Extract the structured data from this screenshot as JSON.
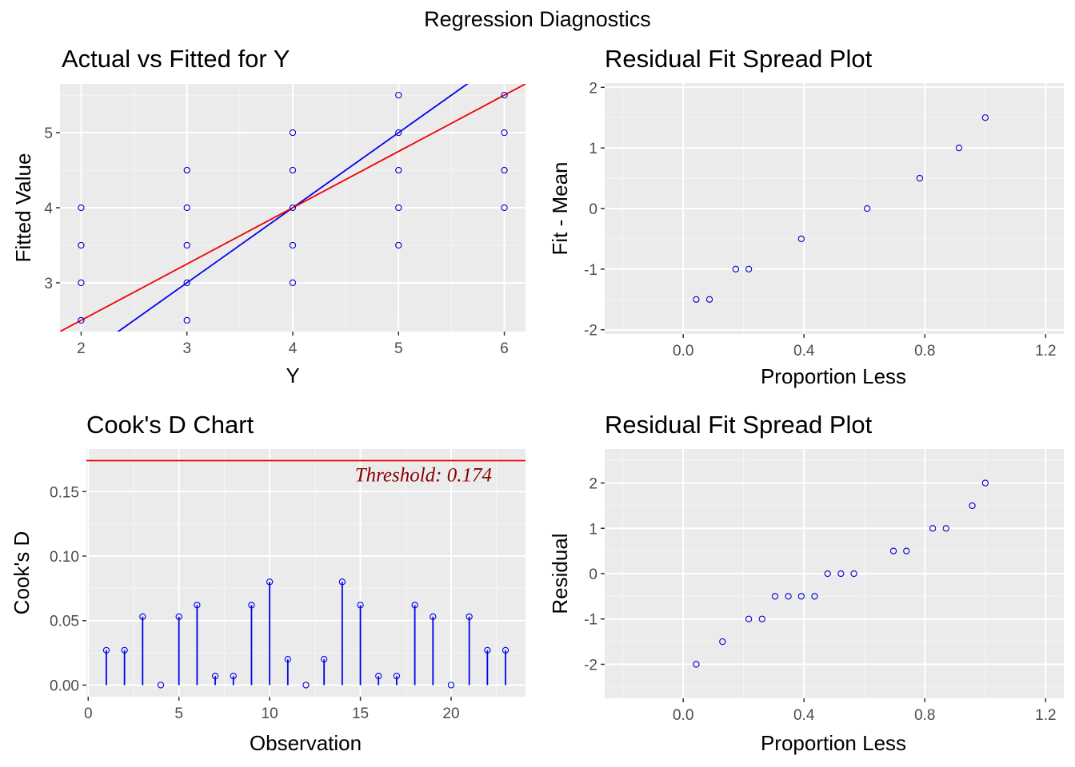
{
  "figure": {
    "title": "Regression Diagnostics"
  },
  "chart_data": [
    {
      "id": "actual-vs-fitted",
      "type": "scatter",
      "title": "Actual vs Fitted for Y",
      "xlabel": "Y",
      "ylabel": "Fitted Value",
      "xlim": [
        1.8,
        6.2
      ],
      "ylim": [
        2.35,
        5.65
      ],
      "xticks": [
        2,
        3,
        4,
        5,
        6
      ],
      "yticks": [
        3,
        4,
        5
      ],
      "grid": true,
      "points": [
        [
          2,
          2.5
        ],
        [
          2,
          3
        ],
        [
          2,
          3.5
        ],
        [
          2,
          4
        ],
        [
          3,
          2.5
        ],
        [
          3,
          3
        ],
        [
          3,
          3.5
        ],
        [
          3,
          4
        ],
        [
          3,
          4.5
        ],
        [
          4,
          3
        ],
        [
          4,
          3.5
        ],
        [
          4,
          4
        ],
        [
          4,
          4.5
        ],
        [
          4,
          5
        ],
        [
          5,
          3.5
        ],
        [
          5,
          4
        ],
        [
          5,
          4.5
        ],
        [
          5,
          5
        ],
        [
          5,
          5.5
        ],
        [
          6,
          4
        ],
        [
          6,
          4.5
        ],
        [
          6,
          5
        ],
        [
          6,
          5.5
        ]
      ],
      "lines": [
        {
          "color": "#0000ee",
          "slope": 1,
          "intercept": 0
        },
        {
          "color": "#ee0000",
          "slope": 0.75,
          "intercept": 1
        }
      ],
      "point_color": "#0000cc"
    },
    {
      "id": "fit-spread",
      "type": "scatter",
      "title": "Residual Fit Spread Plot",
      "xlabel": "Proportion Less",
      "ylabel": "Fit - Mean",
      "xlim": [
        -0.26,
        1.26
      ],
      "ylim": [
        -2.07,
        2.07
      ],
      "xticks": [
        0.0,
        0.4,
        0.8,
        1.2
      ],
      "xtick_labels": [
        "0.0",
        "0.4",
        "0.8",
        "1.2"
      ],
      "yticks": [
        -2,
        -1,
        0,
        1,
        2
      ],
      "grid": true,
      "points": [
        [
          0.043,
          -1.5
        ],
        [
          0.087,
          -1.5
        ],
        [
          0.174,
          -1
        ],
        [
          0.217,
          -1
        ],
        [
          0.391,
          -0.5
        ],
        [
          0.609,
          0
        ],
        [
          0.783,
          0.5
        ],
        [
          0.913,
          1
        ],
        [
          1.0,
          1.5
        ]
      ],
      "point_color": "#0000cc"
    },
    {
      "id": "cooks-d",
      "type": "bar",
      "title": "Cook's D Chart",
      "xlabel": "Observation",
      "ylabel": "Cook's D",
      "xlim": [
        -0.1,
        24.1
      ],
      "ylim": [
        -0.009,
        0.183
      ],
      "xticks": [
        0,
        5,
        10,
        15,
        20
      ],
      "yticks": [
        0.0,
        0.05,
        0.1,
        0.15
      ],
      "ytick_labels": [
        "0.00",
        "0.05",
        "0.10",
        "0.15"
      ],
      "grid": true,
      "x": [
        1,
        2,
        3,
        4,
        5,
        6,
        7,
        8,
        9,
        10,
        11,
        12,
        13,
        14,
        15,
        16,
        17,
        18,
        19,
        20,
        21,
        22,
        23
      ],
      "values": [
        0.027,
        0.027,
        0.053,
        0.0,
        0.053,
        0.062,
        0.007,
        0.007,
        0.062,
        0.08,
        0.02,
        0.0,
        0.02,
        0.08,
        0.062,
        0.007,
        0.007,
        0.062,
        0.053,
        0.0,
        0.053,
        0.027,
        0.027
      ],
      "threshold": 0.174,
      "threshold_label": "Threshold: 0.174",
      "bar_color": "#0000ee",
      "threshold_color": "#ee0000"
    },
    {
      "id": "residual-spread",
      "type": "scatter",
      "title": "Residual Fit Spread Plot",
      "xlabel": "Proportion Less",
      "ylabel": "Residual",
      "xlim": [
        -0.26,
        1.26
      ],
      "ylim": [
        -2.75,
        2.75
      ],
      "xticks": [
        0.0,
        0.4,
        0.8,
        1.2
      ],
      "xtick_labels": [
        "0.0",
        "0.4",
        "0.8",
        "1.2"
      ],
      "yticks": [
        -2,
        -1,
        0,
        1,
        2
      ],
      "grid": true,
      "points": [
        [
          0.043,
          -2
        ],
        [
          0.13,
          -1.5
        ],
        [
          0.217,
          -1
        ],
        [
          0.261,
          -1
        ],
        [
          0.304,
          -0.5
        ],
        [
          0.348,
          -0.5
        ],
        [
          0.391,
          -0.5
        ],
        [
          0.435,
          -0.5
        ],
        [
          0.478,
          0
        ],
        [
          0.522,
          0
        ],
        [
          0.565,
          0
        ],
        [
          0.696,
          0.5
        ],
        [
          0.739,
          0.5
        ],
        [
          0.826,
          1
        ],
        [
          0.87,
          1
        ],
        [
          0.957,
          1.5
        ],
        [
          1.0,
          2
        ]
      ],
      "point_color": "#0000cc"
    }
  ]
}
